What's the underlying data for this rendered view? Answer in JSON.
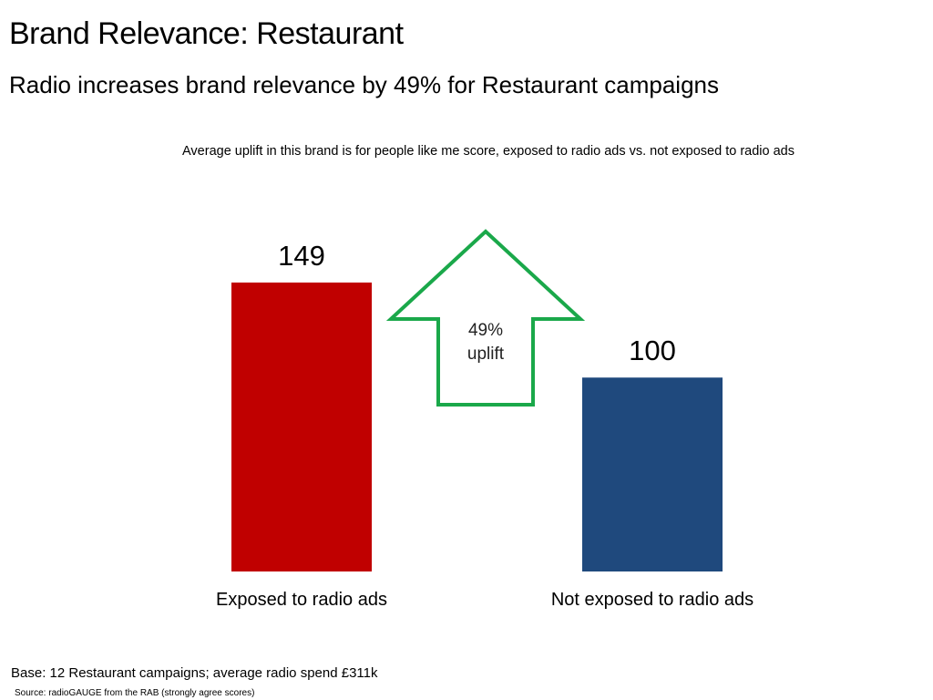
{
  "header": {
    "title": "Brand Relevance: Restaurant",
    "subtitle": "Radio increases brand relevance by 49% for Restaurant campaigns"
  },
  "chart_data": {
    "type": "bar",
    "title": "Average uplift in this brand is for people like me score, exposed to radio ads vs. not exposed to radio ads",
    "categories": [
      "Exposed to radio ads",
      "Not exposed to radio ads"
    ],
    "values": [
      149,
      100
    ],
    "data_labels": [
      "149",
      "100"
    ],
    "colors": [
      "#c00000",
      "#1f497d"
    ],
    "xlabel": "",
    "ylabel": "",
    "ylim": [
      0,
      149
    ],
    "grid": false,
    "annotation": {
      "shape": "up-arrow",
      "line1": "49%",
      "line2": "uplift",
      "color": "#1aa84a"
    }
  },
  "footer": {
    "base": "Base: 12 Restaurant campaigns; average radio spend £311k",
    "source": "Source: radioGAUGE from the RAB (strongly agree scores)"
  }
}
